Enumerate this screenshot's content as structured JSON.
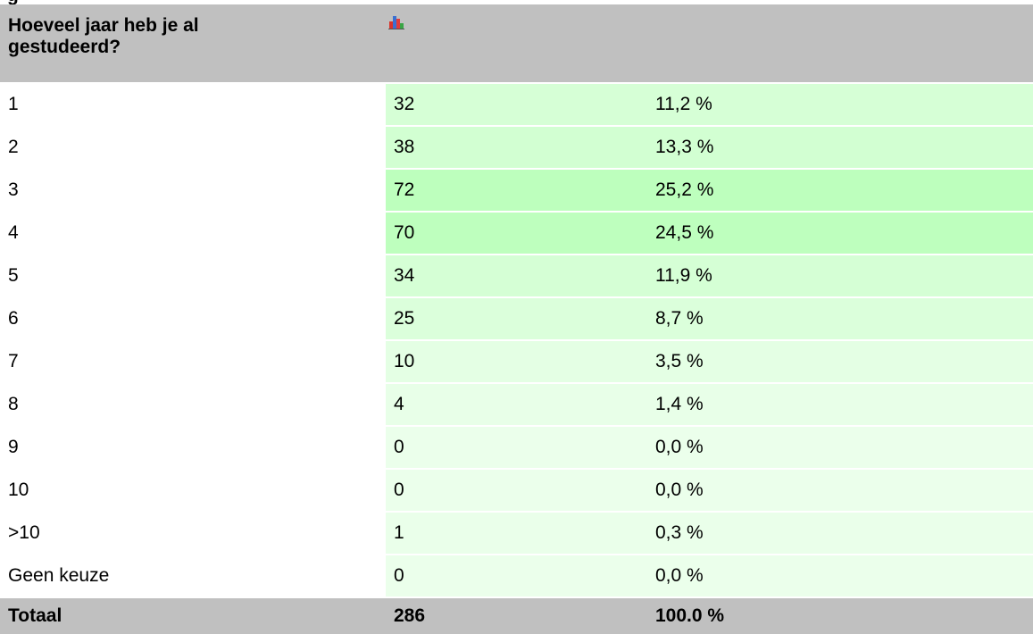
{
  "top_fragment": "g",
  "table": {
    "header": [
      "Hoeveel jaar heb je al gestudeerd?"
    ],
    "rows": [
      [
        "1",
        32,
        "11,2 %"
      ],
      [
        "2",
        38,
        "13,3 %"
      ],
      [
        "3",
        72,
        "25,2 %"
      ],
      [
        "4",
        70,
        "24,5 %"
      ],
      [
        "5",
        34,
        "11,9 %"
      ],
      [
        "6",
        25,
        "8,7 %"
      ],
      [
        "7",
        10,
        "3,5 %"
      ],
      [
        "8",
        4,
        "1,4 %"
      ],
      [
        "9",
        0,
        "0,0 %"
      ],
      [
        "10",
        0,
        "0,0 %"
      ],
      [
        ">10",
        1,
        "0,3 %"
      ],
      [
        "Geen keuze",
        0,
        "0,0 %"
      ]
    ],
    "total": [
      "Totaal",
      286,
      "100.0 %"
    ]
  }
}
